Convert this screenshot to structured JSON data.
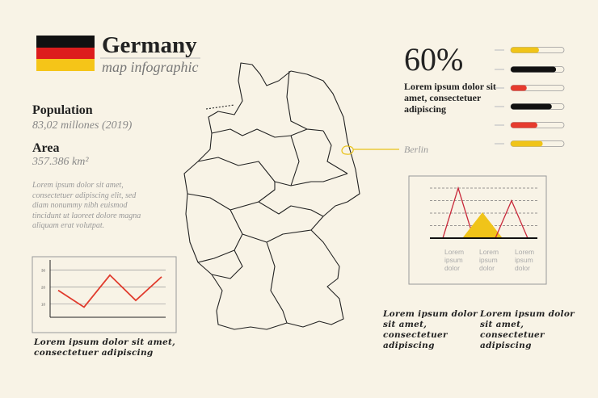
{
  "header": {
    "title": "Germany",
    "subtitle": "map infographic"
  },
  "stats": [
    {
      "label": "Population",
      "value": "83,02 millones (2019)"
    },
    {
      "label": "Area",
      "value": "357.386 km²"
    }
  ],
  "description": "Lorem ipsum dolor sit amet, consectetuer adipiscing elit, sed diam nonummy nibh euismod tincidunt ut laoreet dolore magna aliquam erat volutpat.",
  "highlight": {
    "value": "60%",
    "text": "Lorem ipsum dolor sit amet, consectetuer adipiscing"
  },
  "map": {
    "capital": "Berlin",
    "marker_color": "#e8c21a"
  },
  "progress": {
    "type": "progress",
    "xlim": [
      0,
      100
    ],
    "bars": [
      {
        "value": 53,
        "color": "#f0c419"
      },
      {
        "value": 85,
        "color": "#111111"
      },
      {
        "value": 30,
        "color": "#e63b2e"
      },
      {
        "value": 77,
        "color": "#111111"
      },
      {
        "value": 50,
        "color": "#e63b2e"
      },
      {
        "value": 60,
        "color": "#f0c419"
      }
    ]
  },
  "line_chart": {
    "type": "line",
    "values": [
      18,
      8,
      27,
      12,
      26
    ],
    "color": "#e03a2c",
    "ylim": [
      2,
      36
    ],
    "yticks": [
      10,
      20,
      30
    ],
    "grid": true,
    "caption": "Lorem ipsum dolor sit amet, consectetuer adipiscing"
  },
  "peak_chart": {
    "type": "peaks",
    "categories": [
      "Lorem ipsum dolor",
      "Lorem ipsum dolor",
      "Lorem ipsum dolor"
    ],
    "values": [
      4,
      2,
      3
    ],
    "colors": [
      "#c8283a",
      "#f0c419",
      "#c8283a"
    ],
    "ylim": [
      0,
      4
    ],
    "yticks": [
      1,
      2,
      3,
      4
    ],
    "grid": true
  },
  "notes": [
    "Lorem ipsum dolor sit amet, consectetuer adipiscing",
    "Lorem ipsum dolor sit amet, consectetuer adipiscing"
  ]
}
